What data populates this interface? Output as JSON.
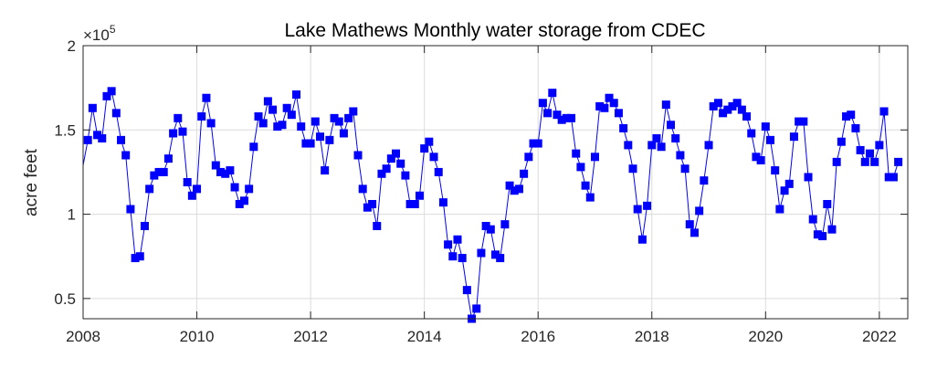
{
  "chart_data": {
    "type": "line",
    "title": "Lake Mathews Monthly water storage from CDEC",
    "xlabel": "",
    "ylabel": "acre feet",
    "xlim": [
      2008,
      2022.5
    ],
    "ylim": [
      0.38,
      2.0
    ],
    "y_exponent_base": "×10",
    "y_exponent_power": "5",
    "xticks": [
      2008,
      2010,
      2012,
      2014,
      2016,
      2018,
      2020,
      2022
    ],
    "xtick_labels": [
      "2008",
      "2010",
      "2012",
      "2014",
      "2016",
      "2018",
      "2020",
      "2022"
    ],
    "yticks": [
      0.5,
      1,
      1.5,
      2
    ],
    "ytick_labels": [
      "0.5",
      "1",
      "1.5",
      "2"
    ],
    "grid": true,
    "line_color": "#0000ff",
    "marker": "square",
    "series": [
      {
        "x_start": 2008.0,
        "x_step_months": 1,
        "y": [
          1.29,
          1.44,
          1.63,
          1.47,
          1.45,
          1.7,
          1.73,
          1.6,
          1.44,
          1.35,
          1.03,
          0.74,
          0.75,
          0.93,
          1.15,
          1.23,
          1.25,
          1.25,
          1.33,
          1.48,
          1.57,
          1.49,
          1.19,
          1.11,
          1.15,
          1.58,
          1.69,
          1.54,
          1.29,
          1.25,
          1.24,
          1.26,
          1.16,
          1.06,
          1.08,
          1.15,
          1.4,
          1.58,
          1.54,
          1.67,
          1.62,
          1.52,
          1.53,
          1.63,
          1.59,
          1.71,
          1.52,
          1.42,
          1.42,
          1.55,
          1.46,
          1.26,
          1.44,
          1.57,
          1.55,
          1.48,
          1.57,
          1.61,
          1.35,
          1.15,
          1.04,
          1.06,
          0.93,
          1.24,
          1.27,
          1.33,
          1.36,
          1.3,
          1.23,
          1.06,
          1.06,
          1.11,
          1.39,
          1.43,
          1.34,
          1.25,
          1.07,
          0.82,
          0.75,
          0.85,
          0.74,
          0.55,
          0.38,
          0.44,
          0.77,
          0.93,
          0.91,
          0.76,
          0.74,
          0.94,
          1.17,
          1.14,
          1.15,
          1.24,
          1.34,
          1.42,
          1.42,
          1.66,
          1.6,
          1.72,
          1.59,
          1.56,
          1.57,
          1.57,
          1.36,
          1.28,
          1.17,
          1.1,
          1.34,
          1.64,
          1.63,
          1.69,
          1.66,
          1.6,
          1.51,
          1.41,
          1.27,
          1.03,
          0.85,
          1.05,
          1.41,
          1.45,
          1.4,
          1.65,
          1.53,
          1.45,
          1.35,
          1.27,
          0.94,
          0.89,
          1.02,
          1.2,
          1.41,
          1.64,
          1.66,
          1.6,
          1.62,
          1.64,
          1.66,
          1.62,
          1.58,
          1.48,
          1.34,
          1.32,
          1.52,
          1.44,
          1.26,
          1.03,
          1.14,
          1.18,
          1.46,
          1.55,
          1.55,
          1.22,
          0.97,
          0.88,
          0.87,
          1.06,
          0.91,
          1.31,
          1.43,
          1.58,
          1.59,
          1.51,
          1.38,
          1.31,
          1.36,
          1.31,
          1.41,
          1.61,
          1.22,
          1.22,
          1.31
        ]
      }
    ]
  }
}
